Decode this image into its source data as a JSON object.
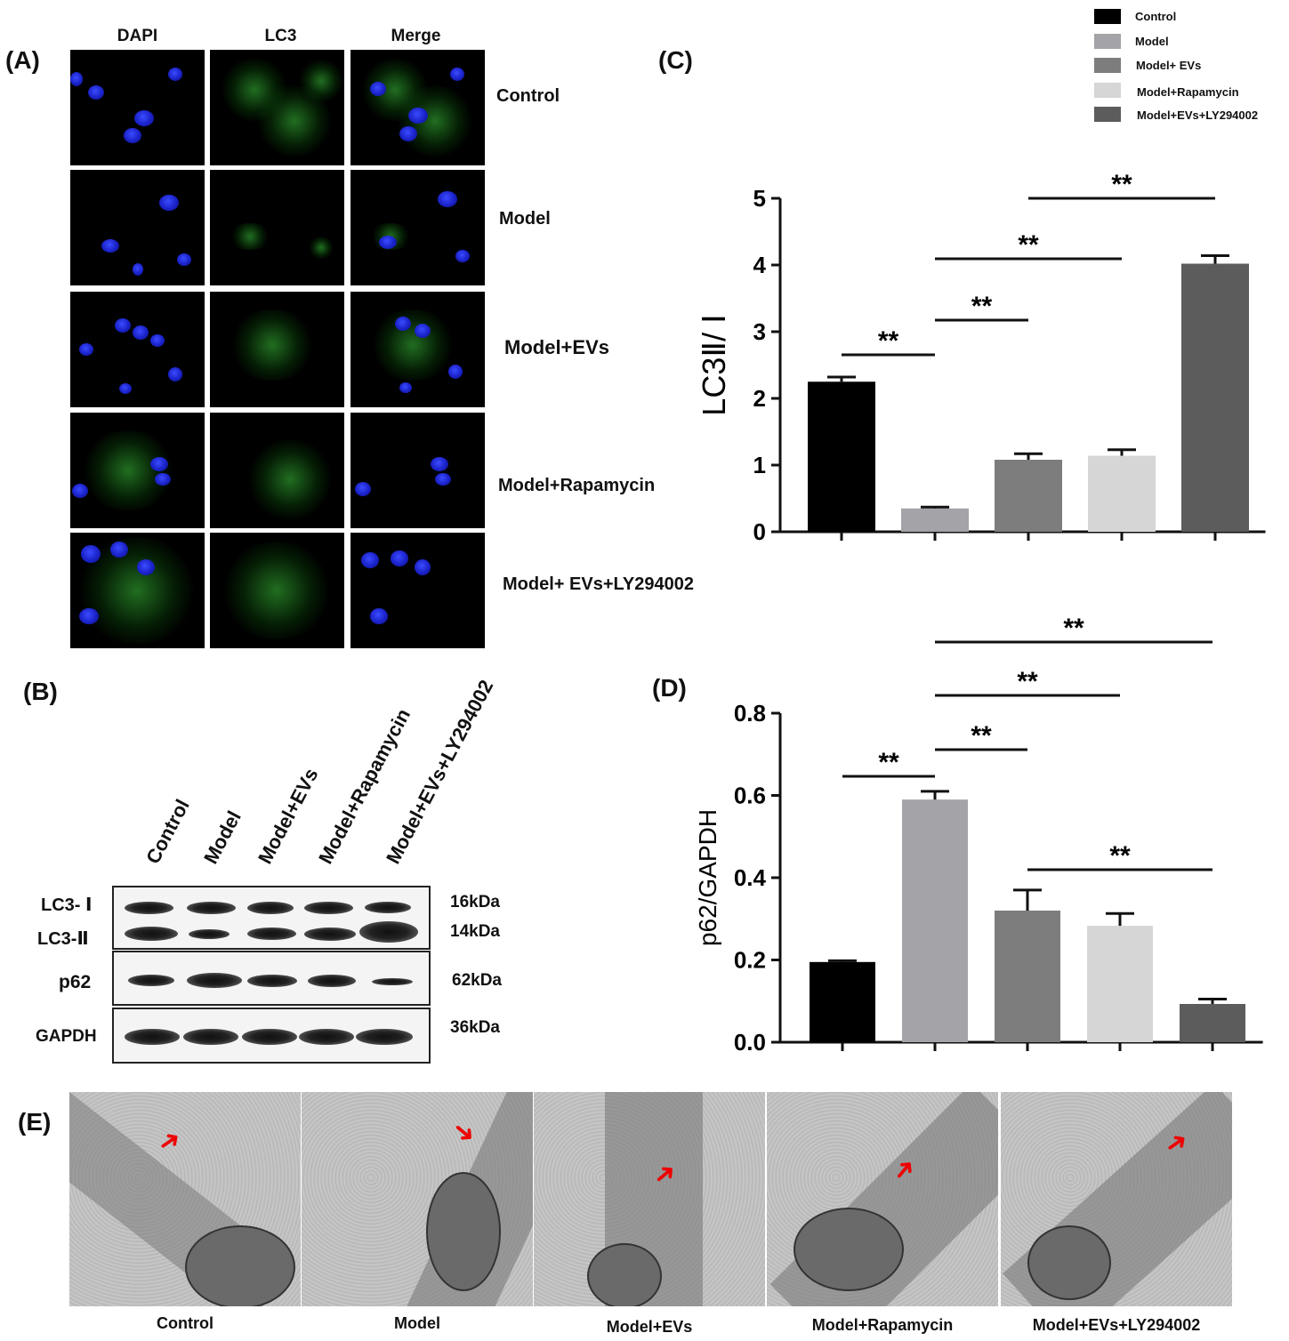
{
  "panels": {
    "a": "(A)",
    "b": "(B)",
    "c": "(C)",
    "d": "(D)",
    "e": "(E)"
  },
  "panel_a": {
    "columns": [
      "DAPI",
      "LC3",
      "Merge"
    ],
    "rows": [
      "Control",
      "Model",
      "Model+EVs",
      "Model+Rapamycin",
      "Model+ EVs+LY294002"
    ]
  },
  "panel_b": {
    "lanes": [
      "Control",
      "Model",
      "Model+EVs",
      "Model+Rapamycin",
      "Model+EVs+LY294002"
    ],
    "rows": [
      {
        "label": "LC3- Ⅰ",
        "mw": "16kDa"
      },
      {
        "label": "LC3-Ⅱ",
        "mw": "14kDa"
      },
      {
        "label": "p62",
        "mw": "62kDa"
      },
      {
        "label": "GAPDH",
        "mw": "36kDa"
      }
    ]
  },
  "panel_e": {
    "captions": [
      "Control",
      "Model",
      "Model+EVs",
      "Model+Rapamycin",
      "Model+EVs+LY294002"
    ]
  },
  "legend": {
    "items": [
      {
        "label": "Control",
        "color": "#000000"
      },
      {
        "label": "Model",
        "color": "#a3a3a8"
      },
      {
        "label": "Model+ EVs",
        "color": "#7d7d7d"
      },
      {
        "label": "Model+Rapamycin",
        "color": "#d6d6d6"
      },
      {
        "label": "Model+EVs+LY294002",
        "color": "#5c5c5c"
      }
    ]
  },
  "chart_data": [
    {
      "type": "bar",
      "panel": "C",
      "ylabel": "LC3Ⅱ/ Ⅰ",
      "ylim": [
        0,
        5
      ],
      "yticks": [
        "0",
        "1",
        "2",
        "3",
        "4",
        "5"
      ],
      "categories": [
        "Control",
        "Model",
        "Model+ EVs",
        "Model+Rapamycin",
        "Model+EVs+LY294002"
      ],
      "values": [
        2.25,
        0.35,
        1.08,
        1.14,
        4.02
      ],
      "errors": [
        0.07,
        0.02,
        0.09,
        0.09,
        0.12
      ],
      "colors": [
        "#000000",
        "#a3a3a8",
        "#7d7d7d",
        "#d6d6d6",
        "#5c5c5c"
      ],
      "significance": [
        {
          "from": 0,
          "to": 1,
          "label": "**"
        },
        {
          "from": 1,
          "to": 2,
          "label": "**"
        },
        {
          "from": 1,
          "to": 3,
          "label": "**"
        },
        {
          "from": 2,
          "to": 4,
          "label": "**"
        }
      ]
    },
    {
      "type": "bar",
      "panel": "D",
      "ylabel": "p62/GAPDH",
      "ylim": [
        0,
        0.8
      ],
      "yticks": [
        "0.0",
        "0.2",
        "0.4",
        "0.6",
        "0.8"
      ],
      "categories": [
        "Control",
        "Model",
        "Model+ EVs",
        "Model+Rapamycin",
        "Model+EVs+LY294002"
      ],
      "values": [
        0.195,
        0.59,
        0.32,
        0.283,
        0.093
      ],
      "errors": [
        0.003,
        0.02,
        0.05,
        0.03,
        0.012
      ],
      "colors": [
        "#000000",
        "#a3a3a8",
        "#7d7d7d",
        "#d6d6d6",
        "#5c5c5c"
      ],
      "significance": [
        {
          "from": 0,
          "to": 1,
          "label": "**"
        },
        {
          "from": 1,
          "to": 2,
          "label": "**"
        },
        {
          "from": 1,
          "to": 3,
          "label": "**"
        },
        {
          "from": 1,
          "to": 4,
          "label": "**"
        },
        {
          "from": 2,
          "to": 4,
          "label": "**"
        }
      ]
    }
  ]
}
